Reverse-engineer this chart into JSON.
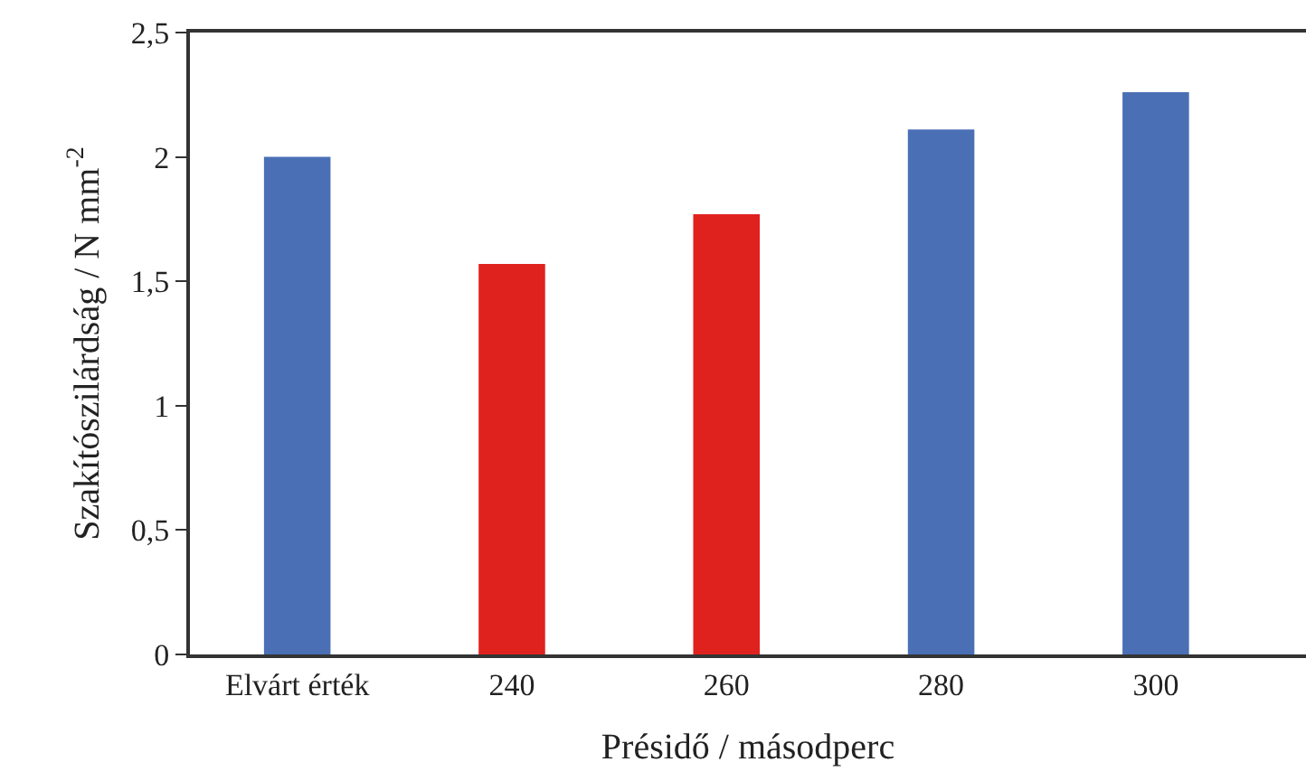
{
  "chart_data": {
    "type": "bar",
    "xlabel": "Présidő / másodperc",
    "ylabel": "Szakítószilárdság / N mm$^{-2}$",
    "categories": [
      "Elvárt érték",
      "240",
      "260",
      "280",
      "300"
    ],
    "values": [
      2.0,
      1.57,
      1.77,
      2.11,
      2.26
    ],
    "colors": [
      "#4a6fb5",
      "#e0221f",
      "#e0221f",
      "#4a6fb5",
      "#4a6fb5"
    ],
    "ylim": [
      0,
      2.5
    ],
    "yticks": [
      0,
      {
        "value": 0.5,
        "label": "0,5"
      },
      1,
      {
        "value": 1.5,
        "label": "1,5"
      },
      2,
      {
        "value": 2.5,
        "label": "2,5"
      }
    ]
  }
}
